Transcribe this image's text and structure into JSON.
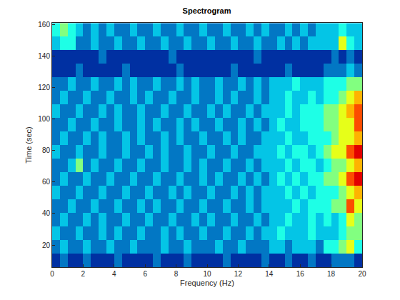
{
  "chart_data": {
    "type": "heatmap",
    "title": "Spectrogram",
    "x_label": "Frequency (Hz)",
    "y_label": "Time (sec)",
    "x": [
      0.25,
      0.75,
      1.25,
      1.75,
      2.25,
      2.75,
      3.25,
      3.75,
      4.25,
      4.75,
      5.25,
      5.75,
      6.25,
      6.75,
      7.25,
      7.75,
      8.25,
      8.75,
      9.25,
      9.75,
      10.25,
      10.75,
      11.25,
      11.75,
      12.25,
      12.75,
      13.25,
      13.75,
      14.25,
      14.75,
      15.25,
      15.75,
      16.25,
      16.75,
      17.25,
      17.75,
      18.25,
      18.75,
      19.25,
      19.75
    ],
    "y": [
      10.3,
      18.9,
      27.5,
      36.1,
      44.7,
      53.3,
      61.9,
      70.5,
      79.1,
      87.7,
      96.3,
      104.9,
      113.5,
      122.1,
      130.7,
      139.3,
      147.9,
      156.5
    ],
    "z": [
      [
        1,
        2,
        1,
        1,
        2,
        1,
        1,
        1,
        2,
        1,
        1,
        1,
        1,
        2,
        1,
        1,
        1,
        2,
        1,
        1,
        1,
        1,
        2,
        1,
        1,
        1,
        1,
        2,
        1,
        1,
        2,
        1,
        1,
        2,
        1,
        1,
        2,
        2,
        2,
        1
      ],
      [
        2,
        3,
        2,
        2,
        3,
        2,
        2,
        3,
        2,
        2,
        3,
        2,
        2,
        2,
        3,
        2,
        2,
        3,
        2,
        2,
        2,
        3,
        2,
        2,
        3,
        2,
        2,
        2,
        3,
        3,
        2,
        3,
        3,
        3,
        2,
        4,
        4,
        5,
        6,
        4
      ],
      [
        3,
        2,
        2,
        3,
        2,
        2,
        3,
        2,
        3,
        2,
        2,
        3,
        2,
        2,
        3,
        2,
        3,
        2,
        2,
        3,
        2,
        2,
        3,
        2,
        2,
        3,
        2,
        3,
        3,
        4,
        3,
        3,
        3,
        4,
        3,
        3,
        3,
        4,
        5,
        5
      ],
      [
        2,
        3,
        2,
        2,
        3,
        2,
        3,
        2,
        2,
        3,
        2,
        2,
        3,
        2,
        2,
        3,
        2,
        2,
        3,
        2,
        3,
        2,
        2,
        3,
        2,
        2,
        3,
        2,
        3,
        3,
        4,
        3,
        3,
        4,
        3,
        4,
        3,
        4,
        6,
        5
      ],
      [
        2,
        2,
        3,
        2,
        2,
        3,
        2,
        2,
        3,
        2,
        2,
        3,
        2,
        3,
        2,
        2,
        3,
        2,
        2,
        3,
        2,
        2,
        3,
        2,
        2,
        3,
        2,
        3,
        3,
        3,
        3,
        4,
        3,
        4,
        4,
        4,
        5,
        5,
        8,
        6
      ],
      [
        3,
        2,
        2,
        3,
        2,
        2,
        3,
        2,
        2,
        3,
        2,
        2,
        3,
        2,
        2,
        3,
        2,
        3,
        2,
        2,
        3,
        2,
        2,
        3,
        2,
        3,
        2,
        3,
        3,
        3,
        4,
        3,
        4,
        3,
        4,
        4,
        4,
        5,
        6,
        7
      ],
      [
        2,
        3,
        2,
        2,
        3,
        2,
        2,
        3,
        2,
        2,
        3,
        2,
        2,
        3,
        2,
        2,
        3,
        2,
        2,
        3,
        2,
        3,
        2,
        2,
        3,
        2,
        3,
        2,
        3,
        4,
        3,
        4,
        3,
        4,
        4,
        5,
        5,
        6,
        8,
        9
      ],
      [
        2,
        2,
        3,
        5,
        2,
        3,
        2,
        2,
        3,
        2,
        2,
        3,
        2,
        2,
        3,
        2,
        2,
        3,
        2,
        3,
        2,
        2,
        3,
        2,
        2,
        3,
        2,
        3,
        3,
        3,
        4,
        3,
        4,
        4,
        3,
        4,
        5,
        5,
        6,
        7
      ],
      [
        3,
        2,
        2,
        3,
        2,
        2,
        3,
        2,
        2,
        3,
        2,
        2,
        3,
        2,
        3,
        2,
        2,
        3,
        2,
        2,
        3,
        2,
        2,
        3,
        2,
        2,
        3,
        3,
        3,
        4,
        3,
        4,
        4,
        3,
        4,
        5,
        6,
        6,
        8,
        9
      ],
      [
        2,
        3,
        2,
        2,
        3,
        2,
        3,
        2,
        2,
        3,
        2,
        3,
        2,
        2,
        3,
        2,
        3,
        2,
        2,
        3,
        2,
        2,
        3,
        2,
        3,
        2,
        2,
        3,
        3,
        3,
        4,
        3,
        3,
        4,
        4,
        4,
        5,
        6,
        6,
        7
      ],
      [
        2,
        2,
        3,
        2,
        2,
        3,
        2,
        2,
        3,
        2,
        2,
        3,
        2,
        3,
        2,
        2,
        3,
        2,
        3,
        2,
        2,
        3,
        2,
        2,
        3,
        2,
        3,
        2,
        3,
        4,
        3,
        3,
        4,
        4,
        4,
        5,
        5,
        6,
        6,
        8
      ],
      [
        3,
        2,
        2,
        3,
        2,
        2,
        3,
        2,
        3,
        2,
        2,
        3,
        2,
        2,
        3,
        2,
        2,
        3,
        2,
        2,
        3,
        2,
        3,
        2,
        2,
        3,
        2,
        3,
        3,
        3,
        4,
        3,
        4,
        4,
        4,
        5,
        5,
        6,
        7,
        8
      ],
      [
        2,
        3,
        2,
        2,
        3,
        2,
        2,
        3,
        2,
        2,
        3,
        2,
        3,
        2,
        2,
        3,
        2,
        2,
        3,
        2,
        2,
        3,
        2,
        3,
        2,
        2,
        3,
        2,
        3,
        3,
        4,
        3,
        3,
        4,
        3,
        4,
        4,
        5,
        6,
        7
      ],
      [
        2,
        2,
        3,
        2,
        2,
        3,
        2,
        2,
        3,
        2,
        3,
        2,
        2,
        3,
        2,
        2,
        3,
        2,
        3,
        2,
        2,
        3,
        2,
        2,
        3,
        2,
        3,
        2,
        3,
        3,
        3,
        4,
        3,
        3,
        3,
        4,
        4,
        4,
        5,
        5
      ],
      [
        1,
        1,
        1,
        2,
        1,
        1,
        1,
        1,
        1,
        2,
        1,
        1,
        1,
        1,
        1,
        1,
        2,
        1,
        1,
        1,
        1,
        1,
        1,
        2,
        1,
        1,
        1,
        1,
        1,
        1,
        2,
        1,
        1,
        1,
        1,
        2,
        2,
        2,
        3,
        2
      ],
      [
        1,
        1,
        1,
        1,
        1,
        1,
        2,
        1,
        1,
        1,
        1,
        1,
        1,
        1,
        1,
        2,
        1,
        1,
        1,
        1,
        1,
        1,
        1,
        1,
        1,
        1,
        2,
        1,
        1,
        1,
        1,
        1,
        1,
        1,
        1,
        1,
        2,
        1,
        2,
        1
      ],
      [
        3,
        4,
        4,
        2,
        2,
        3,
        2,
        2,
        3,
        2,
        2,
        3,
        2,
        2,
        3,
        2,
        2,
        3,
        2,
        2,
        3,
        2,
        2,
        3,
        2,
        2,
        3,
        2,
        2,
        3,
        2,
        3,
        2,
        3,
        3,
        3,
        3,
        6,
        4,
        3
      ],
      [
        4,
        5,
        4,
        3,
        2,
        3,
        2,
        3,
        2,
        2,
        3,
        2,
        2,
        3,
        2,
        2,
        3,
        2,
        2,
        3,
        2,
        2,
        3,
        2,
        2,
        3,
        2,
        3,
        2,
        2,
        3,
        2,
        3,
        2,
        3,
        3,
        3,
        4,
        3,
        3
      ]
    ],
    "zlim": [
      0,
      10
    ],
    "xlim": [
      0,
      20
    ],
    "ylim": [
      6,
      161
    ],
    "xticks": [
      0,
      2,
      4,
      6,
      8,
      10,
      12,
      14,
      16,
      18,
      20
    ],
    "yticks": [
      20,
      40,
      60,
      80,
      100,
      120,
      140,
      160
    ]
  }
}
